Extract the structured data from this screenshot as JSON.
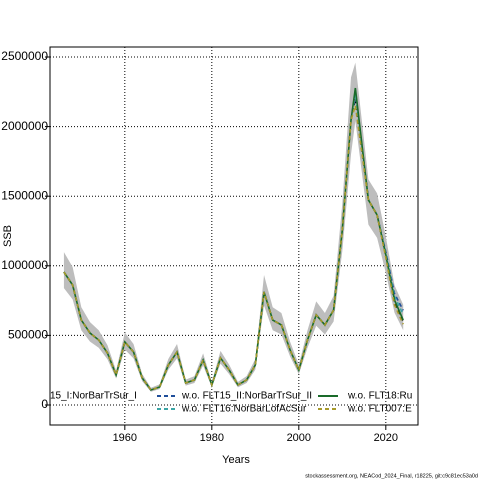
{
  "chart_data": {
    "type": "line",
    "xlabel": "Years",
    "ylabel": "SSB",
    "caption": "stockassessment.org, NEACod_2024_Final, r18225, git:c9c81ec53a0d",
    "x": [
      1946,
      1948,
      1950,
      1952,
      1954,
      1956,
      1958,
      1960,
      1962,
      1964,
      1966,
      1968,
      1970,
      1972,
      1974,
      1976,
      1978,
      1980,
      1982,
      1984,
      1986,
      1988,
      1990,
      1992,
      1994,
      1996,
      1998,
      2000,
      2002,
      2004,
      2006,
      2008,
      2010,
      2012,
      2013,
      2016,
      2018,
      2020,
      2022,
      2024
    ],
    "band": {
      "color": "#bdbdbd",
      "upper": [
        1098000,
        991000,
        702000,
        595000,
        537000,
        430000,
        248000,
        521000,
        438000,
        223000,
        124000,
        148000,
        330000,
        438000,
        182000,
        207000,
        371000,
        166000,
        389000,
        289000,
        166000,
        207000,
        330000,
        934000,
        702000,
        661000,
        454000,
        289000,
        537000,
        744000,
        661000,
        784000,
        1446000,
        2354000,
        2460000,
        1620000,
        1520000,
        1210000,
        860000,
        720000
      ],
      "lower": [
        840000,
        759000,
        537000,
        455000,
        411000,
        329000,
        190000,
        399000,
        335000,
        171000,
        95000,
        114000,
        253000,
        335000,
        139000,
        158000,
        284000,
        127000,
        297000,
        221000,
        127000,
        158000,
        253000,
        715000,
        537000,
        506000,
        348000,
        221000,
        411000,
        569000,
        506000,
        600000,
        1106000,
        1801000,
        2040000,
        1296000,
        1201000,
        949000,
        663000,
        537000
      ]
    },
    "series": [
      {
        "name": "15_I:NorBarTrSur_I",
        "color": "#000000",
        "dash": "4 3",
        "values": [
          955000,
          862000,
          610000,
          517000,
          467000,
          374000,
          216000,
          453000,
          381000,
          194000,
          108000,
          129000,
          287000,
          381000,
          158000,
          180000,
          323000,
          144000,
          338000,
          251000,
          144000,
          180000,
          287000,
          812000,
          610000,
          575000,
          395000,
          251000,
          467000,
          647000,
          575000,
          682000,
          1257000,
          2047000,
          2200000,
          1473000,
          1365000,
          1070000,
          740000,
          600000
        ]
      },
      {
        "name": "w.o. FLT15_II:NorBarTrSur_II",
        "color": "#1f4e9a",
        "dash": "4 3",
        "values": [
          955000,
          862000,
          610000,
          517000,
          467000,
          374000,
          216000,
          453000,
          381000,
          194000,
          108000,
          129000,
          287000,
          381000,
          158000,
          180000,
          323000,
          144000,
          338000,
          251000,
          144000,
          180000,
          287000,
          812000,
          610000,
          575000,
          395000,
          251000,
          467000,
          647000,
          575000,
          682000,
          1257000,
          2047000,
          2250000,
          1473000,
          1365000,
          1100000,
          800000,
          680000
        ]
      },
      {
        "name": "w.o. FLT16:NorBarLofAcSur",
        "color": "#3aa6a6",
        "dash": "4 3",
        "values": [
          955000,
          862000,
          610000,
          517000,
          467000,
          374000,
          216000,
          453000,
          381000,
          194000,
          108000,
          129000,
          287000,
          381000,
          158000,
          180000,
          323000,
          144000,
          338000,
          251000,
          144000,
          180000,
          287000,
          812000,
          610000,
          575000,
          395000,
          251000,
          467000,
          647000,
          575000,
          682000,
          1257000,
          2047000,
          2230000,
          1473000,
          1365000,
          1090000,
          780000,
          650000
        ]
      },
      {
        "name": "w.o. FLT18:Ru",
        "color": "#1a6b2a",
        "dash": "",
        "values": [
          955000,
          862000,
          610000,
          517000,
          467000,
          374000,
          216000,
          453000,
          381000,
          194000,
          108000,
          129000,
          287000,
          381000,
          158000,
          180000,
          323000,
          144000,
          338000,
          251000,
          144000,
          180000,
          287000,
          812000,
          610000,
          575000,
          395000,
          251000,
          467000,
          647000,
          575000,
          682000,
          1257000,
          2047000,
          2277000,
          1473000,
          1365000,
          1078000,
          754000,
          610000
        ]
      },
      {
        "name": "w.o. FLT007:E",
        "color": "#a89a2a",
        "dash": "4 3",
        "values": [
          955000,
          862000,
          610000,
          517000,
          467000,
          374000,
          216000,
          453000,
          381000,
          194000,
          108000,
          129000,
          287000,
          381000,
          158000,
          180000,
          323000,
          144000,
          338000,
          251000,
          144000,
          180000,
          287000,
          812000,
          610000,
          575000,
          395000,
          251000,
          467000,
          647000,
          575000,
          682000,
          1257000,
          2047000,
          2150000,
          1473000,
          1365000,
          1060000,
          720000,
          580000
        ]
      }
    ],
    "xlim": [
      1942.8,
      2027.4
    ],
    "ylim": [
      -143700,
      2571800
    ],
    "xticks": [
      1960,
      1980,
      2000,
      2020
    ],
    "yticks": [
      0,
      500000,
      1000000,
      1500000,
      2000000,
      2500000
    ],
    "grid": true
  }
}
